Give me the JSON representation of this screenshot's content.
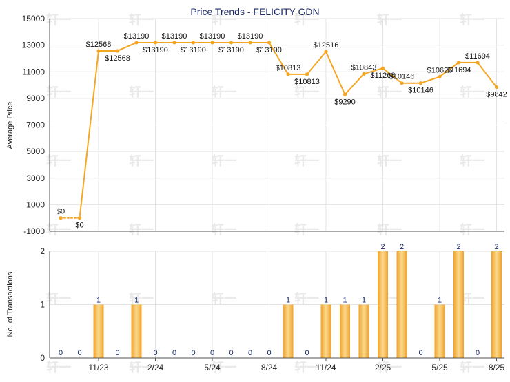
{
  "colors": {
    "line": "#f5a623",
    "bar": "#f0a22a",
    "bar_light": "#fbd98f",
    "title": "#1f2d6b",
    "label": "#1a2a6c",
    "grid": "#e3e3e3",
    "axis": "#555555",
    "watermark": "#e9e9e9"
  },
  "watermark_text": "轩一",
  "chart_data": [
    {
      "type": "line",
      "title": "Price Trends - FELICITY GDN",
      "ylabel": "Average Price",
      "ylim": [
        -1000,
        15000
      ],
      "yticks": [
        "-1000",
        "1000",
        "3000",
        "5000",
        "7000",
        "9000",
        "11000",
        "13000",
        "15000"
      ],
      "grid": true,
      "x": [
        "2023-09",
        "2023-10",
        "2023-11",
        "2023-12",
        "2024-01",
        "2024-02",
        "2024-03",
        "2024-04",
        "2024-05",
        "2024-06",
        "2024-07",
        "2024-08",
        "2024-09",
        "2024-10",
        "2024-11",
        "2024-12",
        "2025-01",
        "2025-02",
        "2025-03",
        "2025-04",
        "2025-05",
        "2025-06",
        "2025-07",
        "2025-08"
      ],
      "values": [
        0,
        0,
        12568,
        12568,
        13190,
        13190,
        13190,
        13190,
        13190,
        13190,
        13190,
        13190,
        10813,
        10813,
        12516,
        9290,
        10843,
        11268,
        10146,
        10146,
        10626,
        11694,
        11694,
        9842
      ],
      "labels": [
        "$0",
        "$0",
        "$12568",
        "$12568",
        "$13190",
        "$13190",
        "$13190",
        "$13190",
        "$13190",
        "$13190",
        "$13190",
        "$13190",
        "$10813",
        "$10813",
        "$12516",
        "$9290",
        "$10843",
        "$11268",
        "$10146",
        "$10146",
        "$10626",
        "$11694",
        "$11694",
        "$9842"
      ],
      "dotted_segments": [
        0
      ]
    },
    {
      "type": "bar",
      "ylabel": "No. of Transactions",
      "ylim": [
        0,
        2
      ],
      "yticks": [
        "0",
        "1",
        "2"
      ],
      "grid": true,
      "categories": [
        "2023-09",
        "2023-10",
        "2023-11",
        "2023-12",
        "2024-01",
        "2024-02",
        "2024-03",
        "2024-04",
        "2024-05",
        "2024-06",
        "2024-07",
        "2024-08",
        "2024-09",
        "2024-10",
        "2024-11",
        "2024-12",
        "2025-01",
        "2025-02",
        "2025-03",
        "2025-04",
        "2025-05",
        "2025-06",
        "2025-07",
        "2025-08"
      ],
      "values": [
        0,
        0,
        1,
        0,
        1,
        0,
        0,
        0,
        0,
        0,
        0,
        0,
        1,
        0,
        1,
        1,
        1,
        2,
        2,
        0,
        1,
        2,
        0,
        2
      ],
      "xtick_labels": [
        {
          "index": 2,
          "label": "11/23"
        },
        {
          "index": 5,
          "label": "2/24"
        },
        {
          "index": 8,
          "label": "5/24"
        },
        {
          "index": 11,
          "label": "8/24"
        },
        {
          "index": 14,
          "label": "11/24"
        },
        {
          "index": 17,
          "label": "2/25"
        },
        {
          "index": 20,
          "label": "5/25"
        },
        {
          "index": 23,
          "label": "8/25"
        }
      ]
    }
  ]
}
